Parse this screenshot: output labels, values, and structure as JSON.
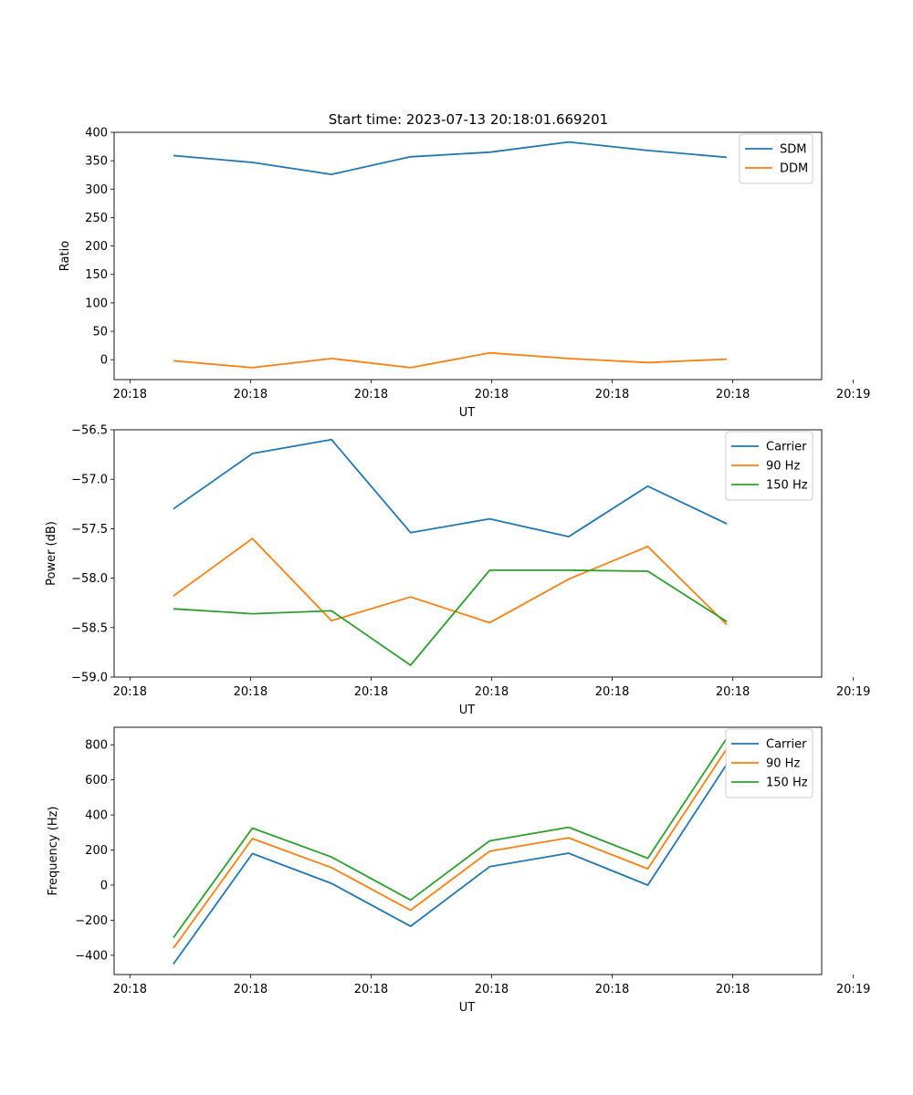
{
  "figure_title": "Start time: 2023-07-13 20:18:01.669201",
  "chart_data": [
    {
      "type": "line",
      "ylabel": "Ratio",
      "xlabel": "UT",
      "ylim": [
        -35,
        400
      ],
      "yticks": [
        0,
        50,
        100,
        150,
        200,
        250,
        300,
        350,
        400
      ],
      "x": [
        1,
        2,
        3,
        4,
        5,
        6,
        7,
        8
      ],
      "xlim": [
        0.25,
        9.2
      ],
      "xticks": [
        0.45,
        1.975,
        3.5,
        5.025,
        6.55,
        8.075,
        9.6
      ],
      "xtick_labels": [
        "20:18",
        "20:18",
        "20:18",
        "20:18",
        "20:18",
        "20:18",
        "20:19"
      ],
      "legend": "top-right",
      "series": [
        {
          "name": "SDM",
          "color": "#1f77b4",
          "values": [
            359,
            347,
            326,
            357,
            365,
            383,
            368,
            356
          ]
        },
        {
          "name": "DDM",
          "color": "#ff7f0e",
          "values": [
            -2,
            -14,
            2,
            -14,
            12,
            2,
            -5,
            1
          ]
        }
      ]
    },
    {
      "type": "line",
      "ylabel": "Power (dB)",
      "xlabel": "UT",
      "ylim": [
        -59.0,
        -56.5
      ],
      "yticks": [
        -59.0,
        -58.5,
        -58.0,
        -57.5,
        -57.0,
        -56.5
      ],
      "ytick_labels": [
        "−59.0",
        "−58.5",
        "−58.0",
        "−57.5",
        "−57.0",
        "−56.5"
      ],
      "x": [
        1,
        2,
        3,
        4,
        5,
        6,
        7,
        8
      ],
      "xlim": [
        0.25,
        9.2
      ],
      "xticks": [
        0.45,
        1.975,
        3.5,
        5.025,
        6.55,
        8.075,
        9.6
      ],
      "xtick_labels": [
        "20:18",
        "20:18",
        "20:18",
        "20:18",
        "20:18",
        "20:18",
        "20:19"
      ],
      "legend": "top-right",
      "series": [
        {
          "name": "Carrier",
          "color": "#1f77b4",
          "values": [
            -57.3,
            -56.74,
            -56.6,
            -57.54,
            -57.4,
            -57.58,
            -57.07,
            -57.45
          ]
        },
        {
          "name": "90 Hz",
          "color": "#ff7f0e",
          "values": [
            -58.18,
            -57.6,
            -58.43,
            -58.19,
            -58.45,
            -58.01,
            -57.68,
            -58.47
          ]
        },
        {
          "name": "150 Hz",
          "color": "#2ca02c",
          "values": [
            -58.31,
            -58.36,
            -58.33,
            -58.88,
            -57.92,
            -57.92,
            -57.93,
            -58.44
          ]
        }
      ]
    },
    {
      "type": "line",
      "ylabel": "Frequency (Hz)",
      "xlabel": "UT",
      "ylim": [
        -510,
        900
      ],
      "yticks": [
        -400,
        -200,
        0,
        200,
        400,
        600,
        800
      ],
      "ytick_labels": [
        "−400",
        "−200",
        "0",
        "200",
        "400",
        "600",
        "800"
      ],
      "x": [
        1,
        2,
        3,
        4,
        5,
        6,
        7,
        8
      ],
      "xlim": [
        0.25,
        9.2
      ],
      "xticks": [
        0.45,
        1.975,
        3.5,
        5.025,
        6.55,
        8.075,
        9.6
      ],
      "xtick_labels": [
        "20:18",
        "20:18",
        "20:18",
        "20:18",
        "20:18",
        "20:18",
        "20:19"
      ],
      "legend": "top-right",
      "series": [
        {
          "name": "Carrier",
          "color": "#1f77b4",
          "values": [
            -450,
            180,
            10,
            -235,
            105,
            182,
            0,
            690
          ]
        },
        {
          "name": "90 Hz",
          "color": "#ff7f0e",
          "values": [
            -360,
            265,
            100,
            -143,
            193,
            270,
            93,
            778
          ]
        },
        {
          "name": "150 Hz",
          "color": "#2ca02c",
          "values": [
            -300,
            325,
            160,
            -85,
            252,
            330,
            153,
            838
          ]
        }
      ]
    }
  ]
}
